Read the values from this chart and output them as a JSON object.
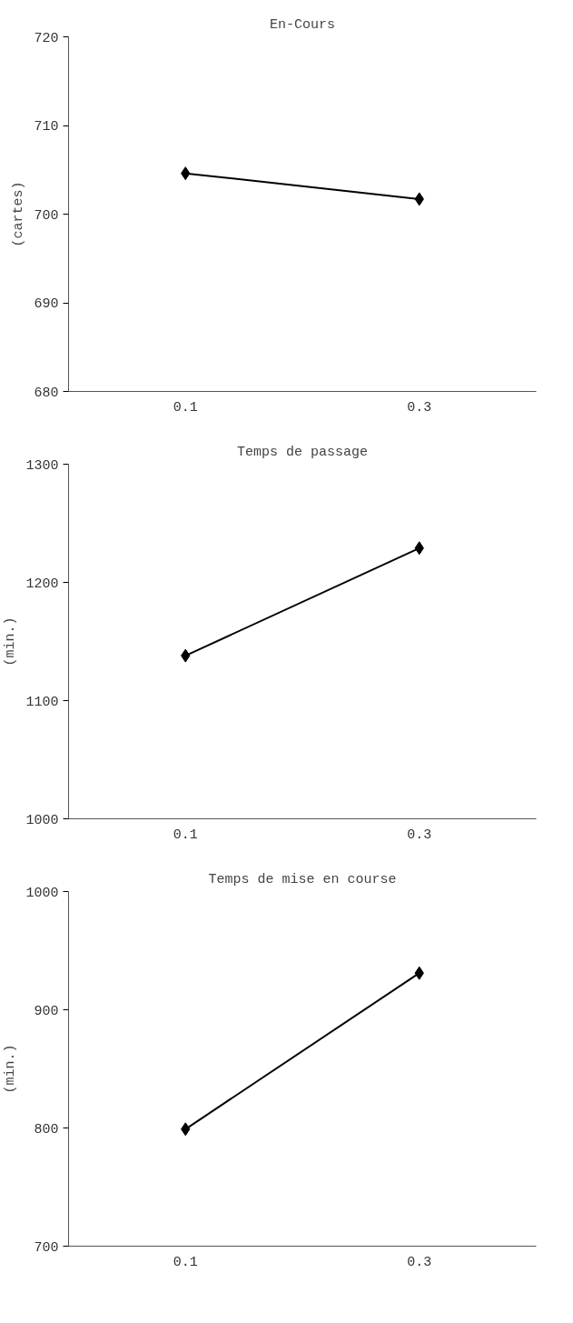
{
  "chart_data": [
    {
      "type": "line",
      "title": "En-Cours",
      "ylabel": "(cartes)",
      "categories": [
        "0.1",
        "0.3"
      ],
      "series": [
        {
          "color": "#000000",
          "values": [
            704.6,
            701.7
          ]
        }
      ],
      "ylim": [
        680,
        720
      ],
      "yticks": [
        680,
        690,
        700,
        710,
        720
      ],
      "marker": "diamond",
      "grid": false
    },
    {
      "type": "line",
      "title": "Temps de passage",
      "ylabel": "(min.)",
      "categories": [
        "0.1",
        "0.3"
      ],
      "series": [
        {
          "color": "#000000",
          "values": [
            1138,
            1229
          ]
        }
      ],
      "ylim": [
        1000,
        1300
      ],
      "yticks": [
        1000,
        1100,
        1200,
        1300
      ],
      "marker": "diamond",
      "grid": false
    },
    {
      "type": "line",
      "title": "Temps de mise en course",
      "ylabel": "(min.)",
      "categories": [
        "0.1",
        "0.3"
      ],
      "series": [
        {
          "color": "#000000",
          "values": [
            799,
            931
          ]
        }
      ],
      "ylim": [
        700,
        1000
      ],
      "yticks": [
        700,
        800,
        900,
        1000
      ],
      "marker": "diamond",
      "grid": false
    }
  ]
}
